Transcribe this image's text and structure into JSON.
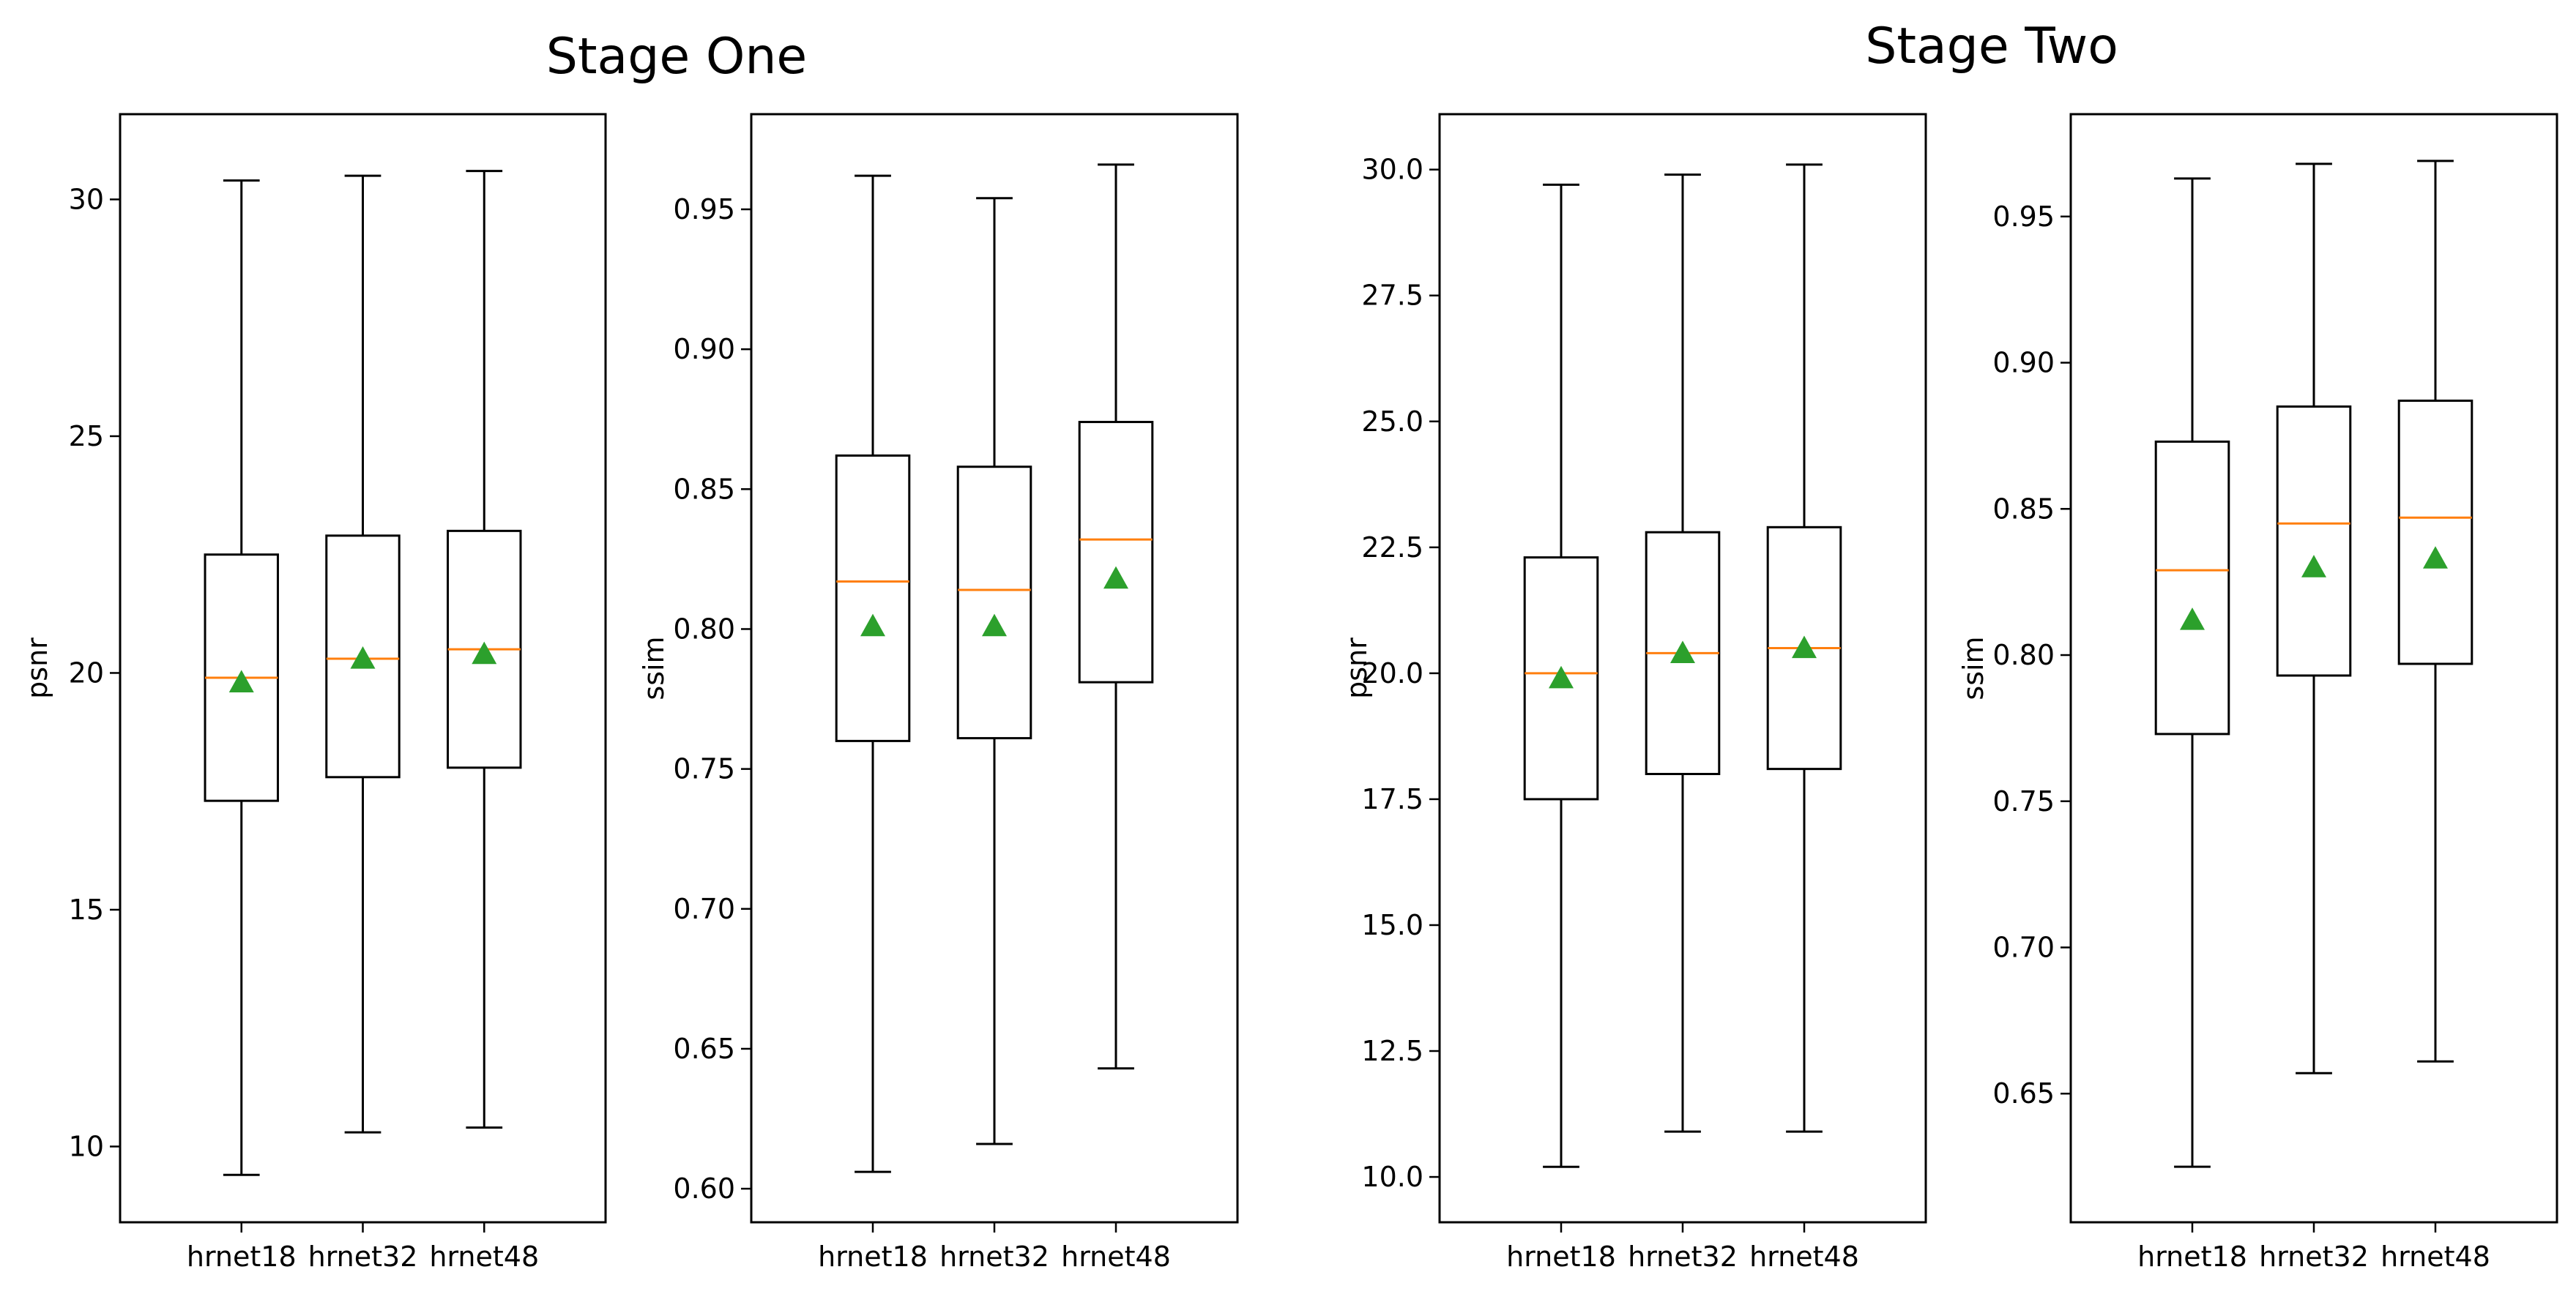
{
  "stage_titles": [
    "Stage One",
    "Stage Two"
  ],
  "chart_data": [
    {
      "type": "box",
      "stage": "Stage One",
      "ylabel": "psnr",
      "ylim": [
        8.4,
        31.8
      ],
      "yticks": [
        10,
        15,
        20,
        25,
        30
      ],
      "ytick_labels": [
        "10",
        "15",
        "20",
        "25",
        "30"
      ],
      "categories": [
        "hrnet18",
        "hrnet32",
        "hrnet48"
      ],
      "boxes": [
        {
          "whislo": 9.4,
          "q1": 17.3,
          "med": 19.9,
          "q3": 22.5,
          "whishi": 30.4,
          "mean": 19.8
        },
        {
          "whislo": 10.3,
          "q1": 17.8,
          "med": 20.3,
          "q3": 22.9,
          "whishi": 30.5,
          "mean": 20.3
        },
        {
          "whislo": 10.4,
          "q1": 18.0,
          "med": 20.5,
          "q3": 23.0,
          "whishi": 30.6,
          "mean": 20.4
        }
      ]
    },
    {
      "type": "box",
      "stage": "Stage One",
      "ylabel": "ssim",
      "ylim": [
        0.588,
        0.984
      ],
      "yticks": [
        0.6,
        0.65,
        0.7,
        0.75,
        0.8,
        0.85,
        0.9,
        0.95
      ],
      "ytick_labels": [
        "0.60",
        "0.65",
        "0.70",
        "0.75",
        "0.80",
        "0.85",
        "0.90",
        "0.95"
      ],
      "categories": [
        "hrnet18",
        "hrnet32",
        "hrnet48"
      ],
      "boxes": [
        {
          "whislo": 0.606,
          "q1": 0.76,
          "med": 0.817,
          "q3": 0.862,
          "whishi": 0.962,
          "mean": 0.801
        },
        {
          "whislo": 0.616,
          "q1": 0.761,
          "med": 0.814,
          "q3": 0.858,
          "whishi": 0.954,
          "mean": 0.801
        },
        {
          "whislo": 0.643,
          "q1": 0.781,
          "med": 0.832,
          "q3": 0.874,
          "whishi": 0.966,
          "mean": 0.818
        }
      ]
    },
    {
      "type": "box",
      "stage": "Stage Two",
      "ylabel": "psnr",
      "ylim": [
        9.1,
        31.1
      ],
      "yticks": [
        10,
        12.5,
        15,
        17.5,
        20,
        22.5,
        25,
        27.5,
        30
      ],
      "ytick_labels": [
        "10.0",
        "12.5",
        "15.0",
        "17.5",
        "20.0",
        "22.5",
        "25.0",
        "27.5",
        "30.0"
      ],
      "categories": [
        "hrnet18",
        "hrnet32",
        "hrnet48"
      ],
      "boxes": [
        {
          "whislo": 10.2,
          "q1": 17.5,
          "med": 20.0,
          "q3": 22.3,
          "whishi": 29.7,
          "mean": 19.9
        },
        {
          "whislo": 10.9,
          "q1": 18.0,
          "med": 20.4,
          "q3": 22.8,
          "whishi": 29.9,
          "mean": 20.4
        },
        {
          "whislo": 10.9,
          "q1": 18.1,
          "med": 20.5,
          "q3": 22.9,
          "whishi": 30.1,
          "mean": 20.5
        }
      ]
    },
    {
      "type": "box",
      "stage": "Stage Two",
      "ylabel": "ssim",
      "ylim": [
        0.606,
        0.985
      ],
      "yticks": [
        0.65,
        0.7,
        0.75,
        0.8,
        0.85,
        0.9,
        0.95
      ],
      "ytick_labels": [
        "0.65",
        "0.70",
        "0.75",
        "0.80",
        "0.85",
        "0.90",
        "0.95"
      ],
      "categories": [
        "hrnet18",
        "hrnet32",
        "hrnet48"
      ],
      "boxes": [
        {
          "whislo": 0.625,
          "q1": 0.773,
          "med": 0.829,
          "q3": 0.873,
          "whishi": 0.963,
          "mean": 0.812
        },
        {
          "whislo": 0.657,
          "q1": 0.793,
          "med": 0.845,
          "q3": 0.885,
          "whishi": 0.968,
          "mean": 0.83
        },
        {
          "whislo": 0.661,
          "q1": 0.797,
          "med": 0.847,
          "q3": 0.887,
          "whishi": 0.969,
          "mean": 0.833
        }
      ]
    }
  ],
  "colors": {
    "frame": "#000000",
    "box": "#000000",
    "median": "#ff7f0e",
    "mean": "#2ca02c",
    "background": "#ffffff"
  }
}
